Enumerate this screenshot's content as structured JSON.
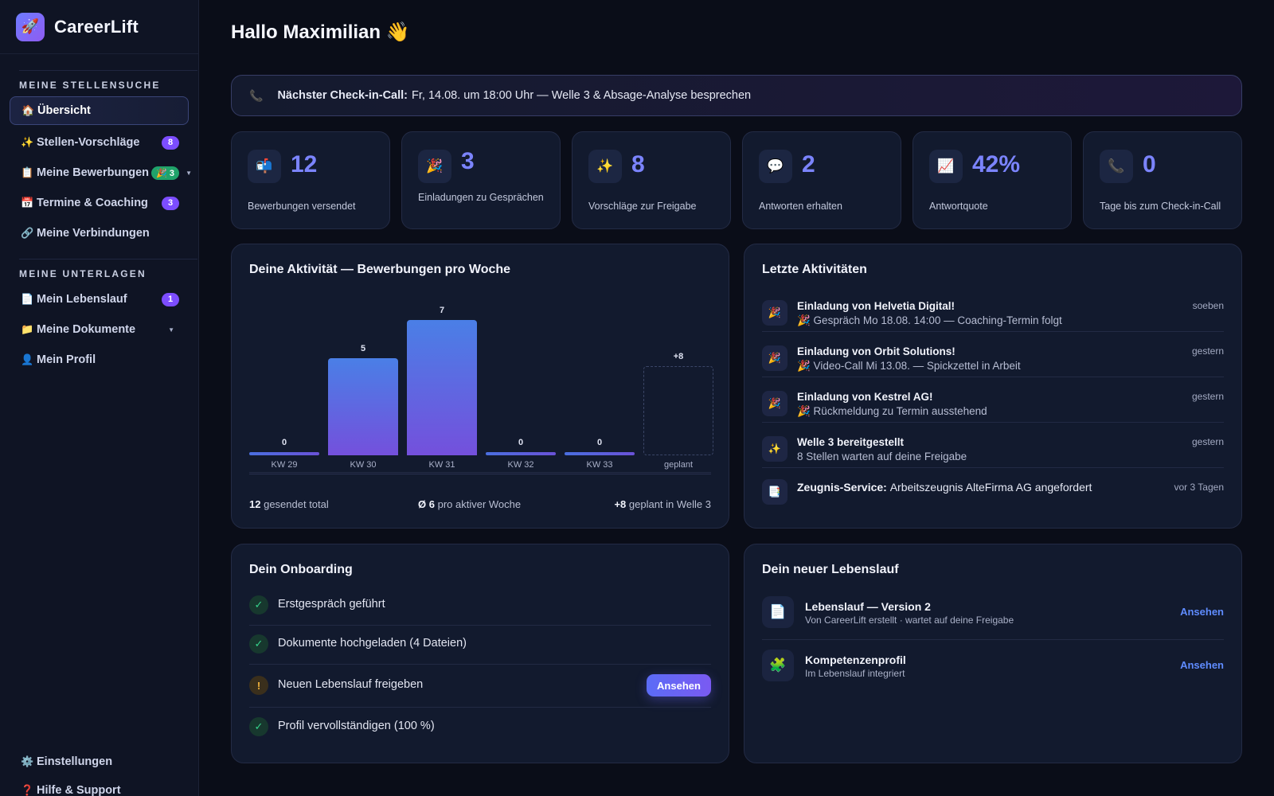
{
  "brand": {
    "logo_icon": "🚀",
    "name": "CareerLift"
  },
  "sidebar": {
    "section_search": "MEINE STELLENSUCHE",
    "section_docs": "MEINE UNTERLAGEN",
    "items": [
      {
        "icon": "🏠",
        "label": "Übersicht"
      },
      {
        "icon": "✨",
        "label": "Stellen-Vorschläge",
        "badge": "8"
      },
      {
        "icon": "📋",
        "label": "Meine Bewerbungen",
        "badge": "🎉 3"
      },
      {
        "icon": "📅",
        "label": "Termine & Coaching",
        "badge": "3"
      },
      {
        "icon": "🔗",
        "label": "Meine Verbindungen"
      },
      {
        "icon": "📄",
        "label": "Mein Lebenslauf",
        "badge": "1"
      },
      {
        "icon": "📁",
        "label": "Meine Dokumente"
      },
      {
        "icon": "👤",
        "label": "Mein Profil"
      },
      {
        "icon": "⚙️",
        "label": "Einstellungen"
      },
      {
        "icon": "❓",
        "label": "Hilfe & Support"
      }
    ]
  },
  "greeting": "Hallo Maximilian 👋",
  "callbar": {
    "icon": "📞",
    "label": "Nächster Check-in-Call:",
    "text": "Fr, 14.08. um 18:00 Uhr — Welle 3 & Absage-Analyse besprechen"
  },
  "stats": [
    {
      "icon": "📬",
      "value": "12",
      "label": "Bewerbungen versendet"
    },
    {
      "icon": "🎉",
      "value": "3",
      "label": "Einladungen zu Gesprächen"
    },
    {
      "icon": "✨",
      "value": "8",
      "label": "Vorschläge zur Freigabe"
    },
    {
      "icon": "💬",
      "value": "2",
      "label": "Antworten erhalten"
    },
    {
      "icon": "📈",
      "value": "42%",
      "label": "Antwortquote"
    },
    {
      "icon": "📞",
      "value": "0",
      "label": "Tage bis zum Check-in-Call"
    }
  ],
  "activity_card": {
    "title": "Deine Aktivität — Bewerbungen pro Woche",
    "footer": [
      {
        "value": "12",
        "text": "gesendet total"
      },
      {
        "value": "Ø 6",
        "text": "pro aktiver Woche"
      },
      {
        "value": "+8",
        "text": "geplant in Welle 3"
      }
    ]
  },
  "chart_data": {
    "type": "bar",
    "title": "Deine Aktivität — Bewerbungen pro Woche",
    "categories": [
      "KW 29",
      "KW 30",
      "KW 31",
      "KW 32",
      "KW 33",
      "geplant"
    ],
    "values": [
      0,
      5,
      7,
      0,
      0,
      8
    ],
    "value_labels": [
      "0",
      "5",
      "7",
      "0",
      "0",
      "+8"
    ],
    "planned_category": "geplant",
    "xlabel": "",
    "ylabel": "",
    "grid": false
  },
  "recent": {
    "title": "Letzte Aktivitäten",
    "items": [
      {
        "icon": "🎉",
        "title": "Einladung von Helvetia Digital!",
        "sub": "🎉 Gespräch Mo 18.08. 14:00 — Coaching-Termin folgt",
        "time": "soeben"
      },
      {
        "icon": "🎉",
        "title": "Einladung von Orbit Solutions!",
        "sub": "🎉 Video-Call Mi 13.08. — Spickzettel in Arbeit",
        "time": "gestern"
      },
      {
        "icon": "🎉",
        "title": "Einladung von Kestrel AG!",
        "sub": "🎉 Rückmeldung zu Termin ausstehend",
        "time": "gestern"
      },
      {
        "icon": "✨",
        "title": "Welle 3 bereitgestellt",
        "sub": "8 Stellen warten auf deine Freigabe",
        "time": "gestern"
      },
      {
        "icon": "📑",
        "title": "Zeugnis-Service:",
        "title_rest": "Arbeitszeugnis AlteFirma AG angefordert",
        "time": "vor 3 Tagen"
      }
    ]
  },
  "onboarding": {
    "title": "Dein Onboarding",
    "items": [
      {
        "status": "✓",
        "label": "Erstgespräch geführt"
      },
      {
        "status": "✓",
        "label": "Dokumente hochgeladen (4 Dateien)"
      },
      {
        "status": "!",
        "label": "Neuen Lebenslauf freigeben",
        "button": "Ansehen"
      },
      {
        "status": "✓",
        "label": "Profil vervollständigen (100 %)"
      }
    ]
  },
  "cv": {
    "title": "Dein neuer Lebenslauf",
    "items": [
      {
        "icon": "📄",
        "title": "Lebenslauf — Version 2",
        "sub": "Von CareerLift erstellt · wartet auf deine Freigabe",
        "link": "Ansehen"
      },
      {
        "icon": "🧩",
        "title": "Kompetenzenprofil",
        "sub": "Im Lebenslauf integriert",
        "link": "Ansehen"
      }
    ]
  }
}
